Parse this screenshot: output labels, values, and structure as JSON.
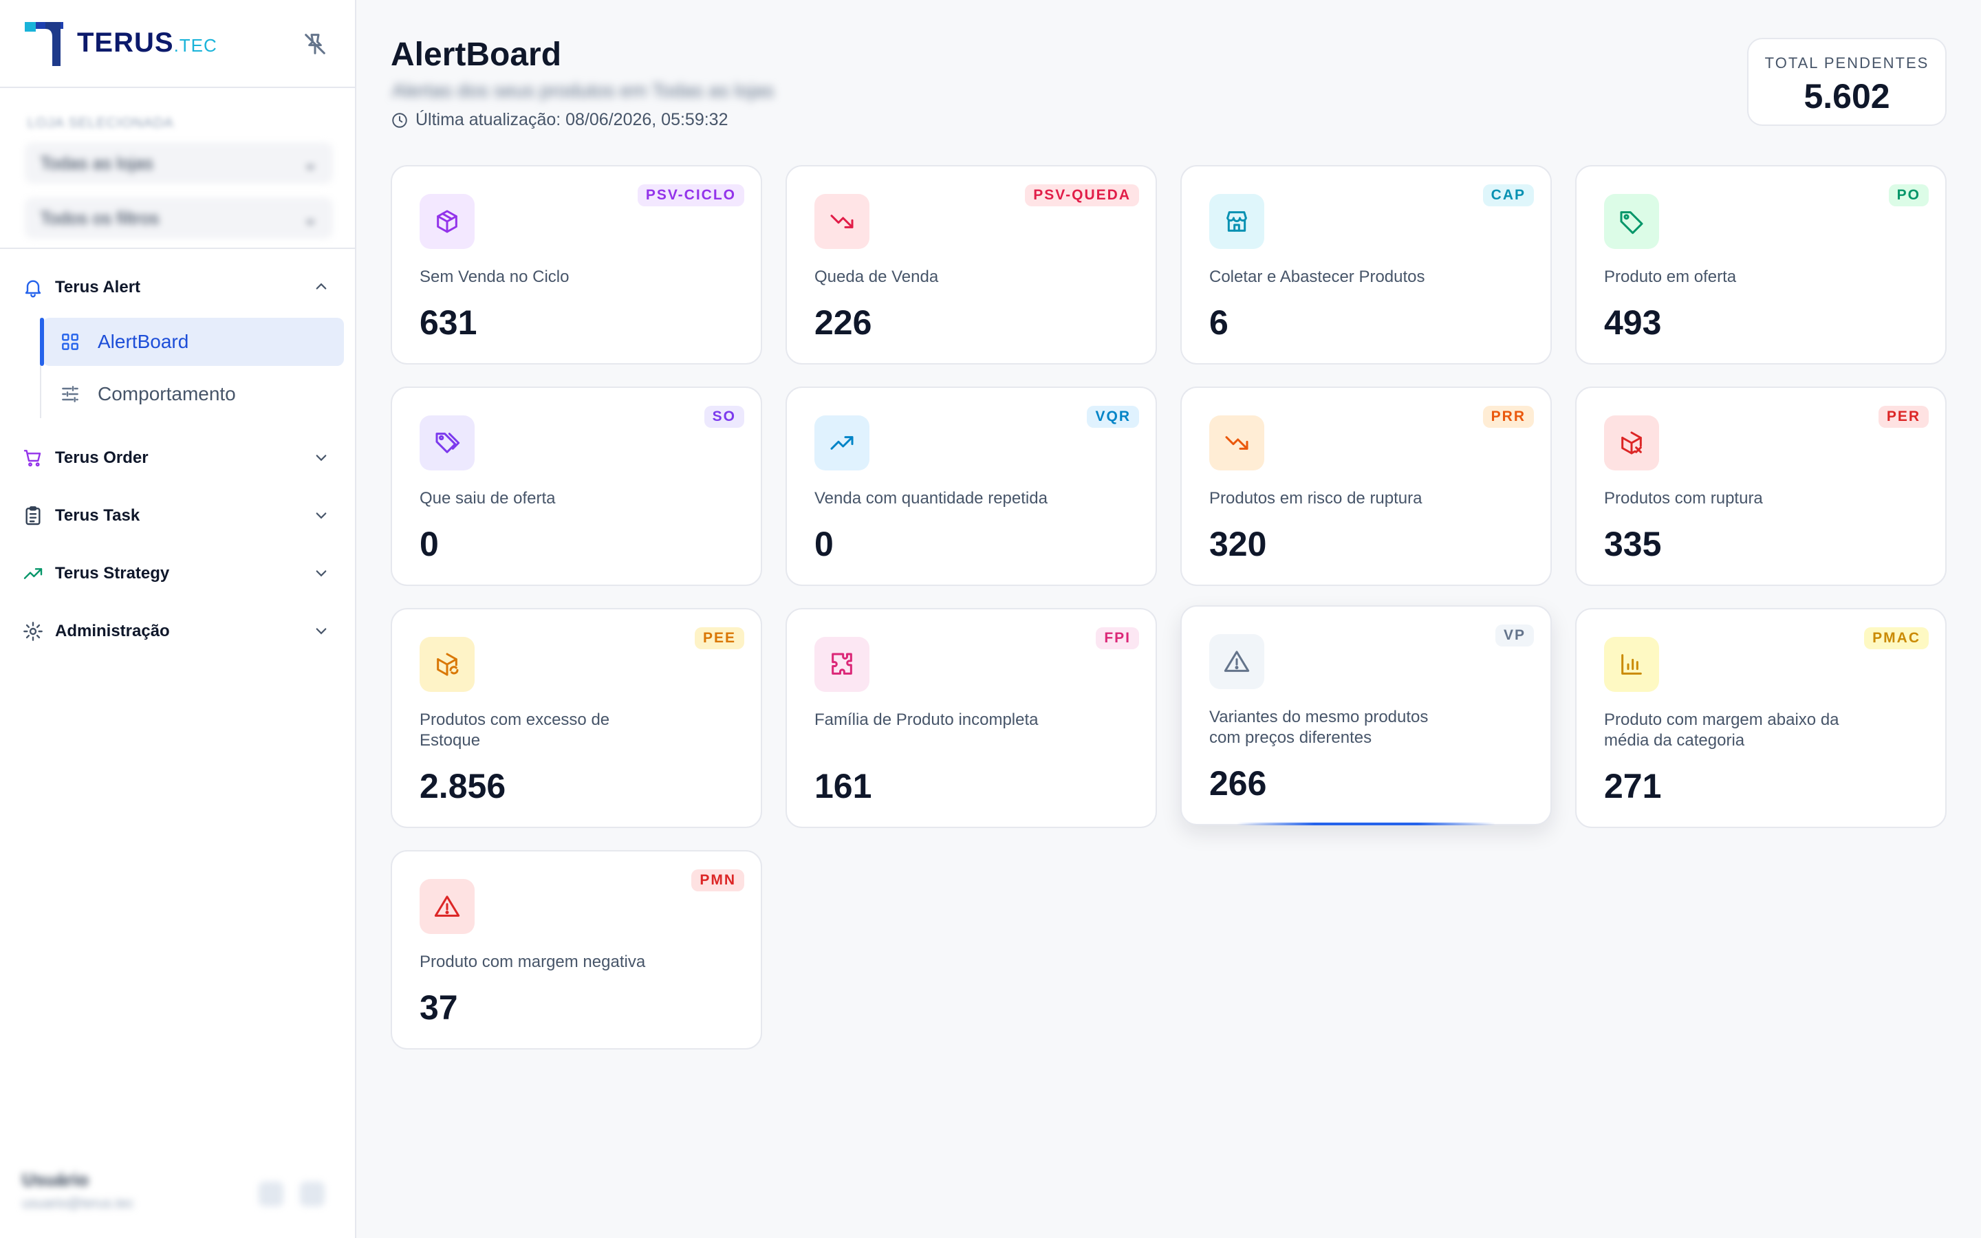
{
  "brand": {
    "name": "TERUS",
    "suffix": ".TEC"
  },
  "sidebar": {
    "filters": {
      "label": "LOJA SELECIONADA",
      "store_value": "Todas as lojas",
      "option_value": "Todos os filtros"
    },
    "groups": [
      {
        "label": "Terus Alert",
        "icon": "bell-icon",
        "expanded": true,
        "items": [
          {
            "label": "AlertBoard",
            "icon": "grid-icon",
            "active": true
          },
          {
            "label": "Comportamento",
            "icon": "sliders-icon",
            "active": false
          }
        ]
      },
      {
        "label": "Terus Order",
        "icon": "cart-icon",
        "expanded": false
      },
      {
        "label": "Terus Task",
        "icon": "clipboard-icon",
        "expanded": false
      },
      {
        "label": "Terus Strategy",
        "icon": "trend-up-icon",
        "expanded": false
      },
      {
        "label": "Administração",
        "icon": "gear-icon",
        "expanded": false
      }
    ],
    "user": {
      "name": "Usuário",
      "email": "usuario@terus.tec"
    }
  },
  "header": {
    "title": "AlertBoard",
    "subtitle": "Alertas dos seus produtos em Todas as lojas",
    "updated": "Última atualização: 08/06/2026, 05:59:32"
  },
  "total": {
    "label": "TOTAL PENDENTES",
    "value": "5.602"
  },
  "cards": [
    {
      "code": "PSV-CICLO",
      "label": "Sem Venda no Ciclo",
      "value": "631",
      "icon": "box-icon",
      "color": "#9333ea",
      "bg": "#f3e8ff"
    },
    {
      "code": "PSV-QUEDA",
      "label": "Queda de Venda",
      "value": "226",
      "icon": "trend-down-icon",
      "color": "#e11d48",
      "bg": "#ffe4e6"
    },
    {
      "code": "CAP",
      "label": "Coletar e Abastecer Produtos",
      "value": "6",
      "icon": "store-icon",
      "color": "#0891b2",
      "bg": "#dff6fb"
    },
    {
      "code": "PO",
      "label": "Produto em oferta",
      "value": "493",
      "icon": "tag-icon",
      "color": "#059669",
      "bg": "#dcfce7"
    },
    {
      "code": "SO",
      "label": "Que saiu de oferta",
      "value": "0",
      "icon": "tags-icon",
      "color": "#7c3aed",
      "bg": "#ede9fe"
    },
    {
      "code": "VQR",
      "label": "Venda com quantidade repetida",
      "value": "0",
      "icon": "trend-up-icon",
      "color": "#0284c7",
      "bg": "#e0f2fe"
    },
    {
      "code": "PRR",
      "label": "Produtos em risco de ruptura",
      "value": "320",
      "icon": "trend-down-icon",
      "color": "#ea580c",
      "bg": "#ffedd5"
    },
    {
      "code": "PER",
      "label": "Produtos com ruptura",
      "value": "335",
      "icon": "package-x-icon",
      "color": "#dc2626",
      "bg": "#fee2e2"
    },
    {
      "code": "PEE",
      "label": "Produtos com excesso de Estoque",
      "value": "2.856",
      "icon": "package-refresh-icon",
      "color": "#d97706",
      "bg": "#fef3c7"
    },
    {
      "code": "FPI",
      "label": "Família de Produto incompleta",
      "value": "161",
      "icon": "puzzle-icon",
      "color": "#db2777",
      "bg": "#fce7f3"
    },
    {
      "code": "VP",
      "label": "Variantes do mesmo produtos com preços diferentes",
      "value": "266",
      "icon": "warning-icon",
      "color": "#64748b",
      "bg": "#f1f5f9"
    },
    {
      "code": "PMAC",
      "label": "Produto com margem abaixo da média da categoria",
      "value": "271",
      "icon": "bar-chart-icon",
      "color": "#ca8a04",
      "bg": "#fef9c3"
    },
    {
      "code": "PMN",
      "label": "Produto com margem negativa",
      "value": "37",
      "icon": "warning-icon",
      "color": "#dc2626",
      "bg": "#fee2e2"
    }
  ]
}
